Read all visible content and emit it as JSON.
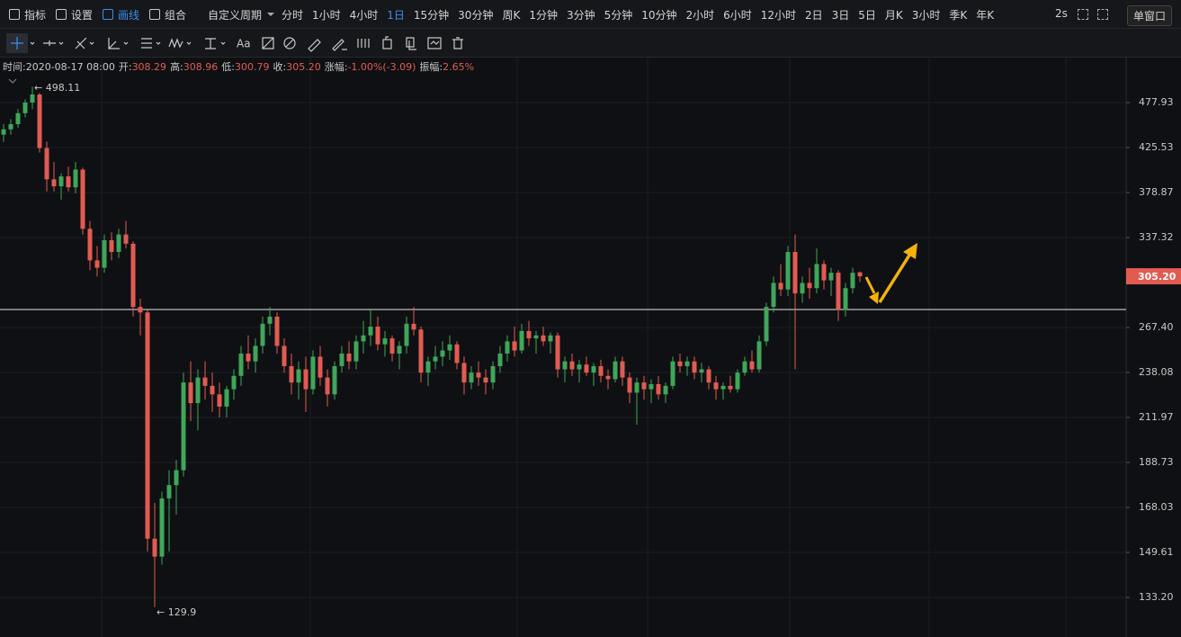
{
  "toolbar": {
    "tools": [
      {
        "label": "指标",
        "active": false
      },
      {
        "label": "设置",
        "active": false
      },
      {
        "label": "画线",
        "active": true
      },
      {
        "label": "组合",
        "active": false
      }
    ],
    "custom_period": "自定义周期",
    "periods": [
      {
        "label": "分时",
        "active": false
      },
      {
        "label": "1小时",
        "active": false
      },
      {
        "label": "4小时",
        "active": false
      },
      {
        "label": "1日",
        "active": true
      },
      {
        "label": "15分钟",
        "active": false
      },
      {
        "label": "30分钟",
        "active": false
      },
      {
        "label": "周K",
        "active": false
      },
      {
        "label": "1分钟",
        "active": false
      },
      {
        "label": "3分钟",
        "active": false
      },
      {
        "label": "5分钟",
        "active": false
      },
      {
        "label": "10分钟",
        "active": false
      },
      {
        "label": "2小时",
        "active": false
      },
      {
        "label": "6小时",
        "active": false
      },
      {
        "label": "12小时",
        "active": false
      },
      {
        "label": "2日",
        "active": false
      },
      {
        "label": "3日",
        "active": false
      },
      {
        "label": "5日",
        "active": false
      },
      {
        "label": "月K",
        "active": false
      },
      {
        "label": "3小时",
        "active": false
      },
      {
        "label": "季K",
        "active": false
      },
      {
        "label": "年K",
        "active": false
      }
    ],
    "refresh": "2s",
    "window": "单窗口",
    "text_tool": "Aa"
  },
  "info": [
    {
      "label": "时间:",
      "value": "2020-08-17 08:00"
    },
    {
      "label": "开:",
      "value": "308.29"
    },
    {
      "label": "高:",
      "value": "308.96"
    },
    {
      "label": "低:",
      "value": "300.79"
    },
    {
      "label": "收:",
      "value": "305.20"
    },
    {
      "label": "涨幅:",
      "value": "-1.00%(-3.09)"
    },
    {
      "label": "振幅:",
      "value": "2.65%"
    }
  ],
  "chart_data": {
    "type": "candlestick",
    "log": true,
    "grid": true,
    "up_color": "#3fa65a",
    "down_color": "#e25b52",
    "ylim": [
      120.26,
      536.8
    ],
    "yticks": [
      477.93,
      425.53,
      378.87,
      337.32,
      {
        "value": 267.4,
        "label": "267.40"
      },
      238.08,
      211.97,
      188.73,
      168.03,
      149.61,
      {
        "value": 133.2,
        "label": "133.20"
      }
    ],
    "last_price_label": "305.20",
    "max_label": "← 498.11",
    "min_label": "← 129.9",
    "hline": 280.1,
    "candles": [
      [
        440,
        452,
        432,
        446
      ],
      [
        446,
        458,
        440,
        452
      ],
      [
        452,
        470,
        448,
        465
      ],
      [
        465,
        482,
        460,
        478
      ],
      [
        478,
        498.11,
        470,
        488
      ],
      [
        488,
        490,
        420,
        425
      ],
      [
        425,
        432,
        380,
        392
      ],
      [
        392,
        410,
        380,
        385
      ],
      [
        385,
        398,
        372,
        395
      ],
      [
        395,
        405,
        380,
        384
      ],
      [
        384,
        410,
        378,
        402
      ],
      [
        402,
        404,
        340,
        345
      ],
      [
        345,
        352,
        310,
        318
      ],
      [
        318,
        330,
        305,
        312
      ],
      [
        312,
        340,
        308,
        335
      ],
      [
        335,
        342,
        318,
        325
      ],
      [
        325,
        345,
        320,
        340
      ],
      [
        340,
        352,
        328,
        332
      ],
      [
        332,
        334,
        275,
        282
      ],
      [
        282,
        288,
        262,
        278
      ],
      [
        278,
        280,
        150,
        155
      ],
      [
        155,
        170,
        129.9,
        148
      ],
      [
        148,
        175,
        145,
        172
      ],
      [
        172,
        185,
        150,
        178
      ],
      [
        178,
        190,
        165,
        185
      ],
      [
        185,
        238,
        182,
        232
      ],
      [
        232,
        245,
        210,
        220
      ],
      [
        220,
        240,
        205,
        235
      ],
      [
        235,
        245,
        222,
        230
      ],
      [
        230,
        238,
        215,
        225
      ],
      [
        225,
        232,
        212,
        218
      ],
      [
        218,
        230,
        212,
        228
      ],
      [
        228,
        240,
        222,
        236
      ],
      [
        236,
        255,
        230,
        250
      ],
      [
        250,
        262,
        240,
        245
      ],
      [
        245,
        260,
        238,
        255
      ],
      [
        255,
        275,
        250,
        270
      ],
      [
        270,
        282,
        262,
        275
      ],
      [
        275,
        278,
        250,
        255
      ],
      [
        255,
        260,
        238,
        242
      ],
      [
        242,
        250,
        225,
        232
      ],
      [
        232,
        245,
        222,
        240
      ],
      [
        240,
        248,
        215,
        228
      ],
      [
        228,
        252,
        225,
        248
      ],
      [
        248,
        255,
        230,
        235
      ],
      [
        235,
        240,
        218,
        225
      ],
      [
        225,
        245,
        222,
        242
      ],
      [
        242,
        255,
        238,
        250
      ],
      [
        250,
        258,
        240,
        245
      ],
      [
        245,
        262,
        240,
        258
      ],
      [
        258,
        272,
        250,
        262
      ],
      [
        262,
        280,
        255,
        268
      ],
      [
        268,
        275,
        252,
        256
      ],
      [
        256,
        265,
        248,
        260
      ],
      [
        260,
        262,
        245,
        250
      ],
      [
        250,
        258,
        240,
        255
      ],
      [
        255,
        275,
        250,
        270
      ],
      [
        270,
        282,
        262,
        266
      ],
      [
        266,
        268,
        232,
        238
      ],
      [
        238,
        248,
        230,
        245
      ],
      [
        245,
        255,
        240,
        248
      ],
      [
        248,
        258,
        242,
        252
      ],
      [
        252,
        262,
        246,
        256
      ],
      [
        256,
        258,
        240,
        244
      ],
      [
        244,
        248,
        225,
        232
      ],
      [
        232,
        242,
        228,
        238
      ],
      [
        238,
        245,
        230,
        235
      ],
      [
        235,
        240,
        225,
        232
      ],
      [
        232,
        245,
        228,
        242
      ],
      [
        242,
        255,
        238,
        250
      ],
      [
        250,
        262,
        245,
        258
      ],
      [
        258,
        268,
        248,
        252
      ],
      [
        252,
        270,
        250,
        265
      ],
      [
        265,
        272,
        255,
        260
      ],
      [
        260,
        265,
        250,
        262
      ],
      [
        262,
        268,
        255,
        258
      ],
      [
        258,
        264,
        250,
        262
      ],
      [
        262,
        264,
        235,
        240
      ],
      [
        240,
        248,
        232,
        245
      ],
      [
        245,
        250,
        236,
        240
      ],
      [
        240,
        246,
        232,
        243
      ],
      [
        243,
        248,
        236,
        238
      ],
      [
        238,
        244,
        230,
        242
      ],
      [
        242,
        246,
        232,
        236
      ],
      [
        236,
        240,
        228,
        234
      ],
      [
        234,
        248,
        232,
        245
      ],
      [
        245,
        248,
        230,
        235
      ],
      [
        235,
        238,
        220,
        226
      ],
      [
        226,
        235,
        208,
        232
      ],
      [
        232,
        236,
        222,
        228
      ],
      [
        228,
        234,
        220,
        231
      ],
      [
        231,
        236,
        222,
        225
      ],
      [
        225,
        232,
        220,
        230
      ],
      [
        230,
        248,
        228,
        245
      ],
      [
        245,
        250,
        238,
        242
      ],
      [
        242,
        248,
        236,
        245
      ],
      [
        245,
        248,
        234,
        238
      ],
      [
        238,
        244,
        232,
        240
      ],
      [
        240,
        242,
        228,
        232
      ],
      [
        232,
        236,
        222,
        228
      ],
      [
        228,
        232,
        222,
        230
      ],
      [
        230,
        236,
        226,
        228
      ],
      [
        228,
        240,
        226,
        238
      ],
      [
        238,
        248,
        236,
        245
      ],
      [
        245,
        252,
        238,
        240
      ],
      [
        240,
        262,
        238,
        258
      ],
      [
        258,
        285,
        255,
        282
      ],
      [
        282,
        305,
        278,
        300
      ],
      [
        300,
        315,
        290,
        295
      ],
      [
        295,
        330,
        290,
        325
      ],
      [
        325,
        340,
        240,
        292
      ],
      [
        292,
        305,
        285,
        300
      ],
      [
        300,
        312,
        288,
        296
      ],
      [
        296,
        328,
        292,
        315
      ],
      [
        315,
        318,
        295,
        302
      ],
      [
        302,
        312,
        290,
        308
      ],
      [
        308,
        310,
        272,
        280
      ],
      [
        280,
        300,
        275,
        296
      ],
      [
        296,
        312,
        292,
        308
      ],
      [
        308.29,
        308.96,
        300.79,
        305.2
      ]
    ]
  }
}
